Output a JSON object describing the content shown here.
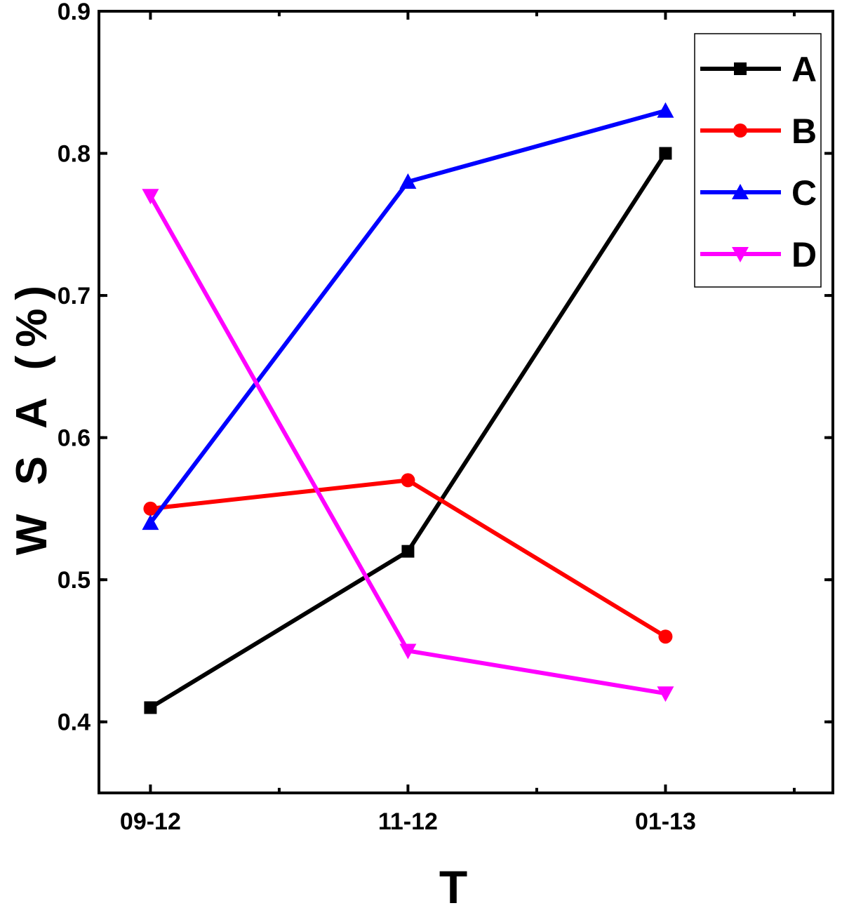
{
  "chart_data": {
    "type": "line",
    "title": "",
    "xlabel": "T",
    "ylabel": "W S A (%)",
    "categories": [
      "09-12",
      "11-12",
      "01-13"
    ],
    "x_range": [
      -0.2,
      2.65
    ],
    "ylim": [
      0.35,
      0.9
    ],
    "y_ticks": [
      0.4,
      0.5,
      0.6,
      0.7,
      0.8,
      0.9
    ],
    "y_tick_labels": [
      "0.4",
      "0.5",
      "0.6",
      "0.7",
      "0.8",
      "0.9"
    ],
    "grid": false,
    "legend_position": "top-right",
    "series": [
      {
        "name": "A",
        "color": "#000000",
        "marker": "square",
        "values": [
          0.41,
          0.52,
          0.8
        ]
      },
      {
        "name": "B",
        "color": "#ff0000",
        "marker": "circle",
        "values": [
          0.55,
          0.57,
          0.46
        ]
      },
      {
        "name": "C",
        "color": "#0000ff",
        "marker": "triangle-up",
        "values": [
          0.54,
          0.78,
          0.83
        ]
      },
      {
        "name": "D",
        "color": "#ff00ff",
        "marker": "triangle-down",
        "values": [
          0.77,
          0.45,
          0.42
        ]
      }
    ]
  }
}
